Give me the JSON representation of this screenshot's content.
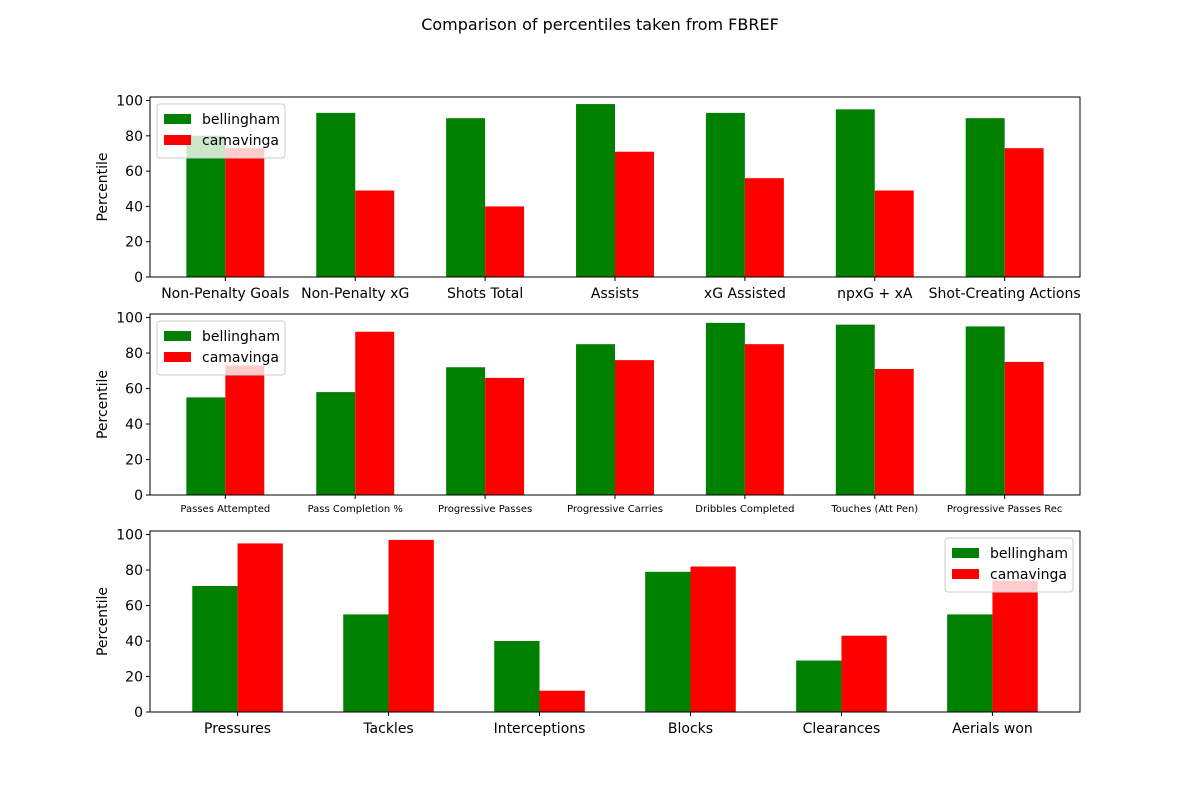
{
  "title": "Comparison of percentiles taken from FBREF",
  "chart_data": [
    {
      "type": "bar",
      "ylabel": "Percentile",
      "ylim": [
        0,
        102
      ],
      "yticks": [
        0,
        20,
        40,
        60,
        80,
        100
      ],
      "legend": "top-left",
      "categories": [
        "Non-Penalty Goals",
        "Non-Penalty xG",
        "Shots Total",
        "Assists",
        "xG Assisted",
        "npxG + xA",
        "Shot-Creating Actions"
      ],
      "series": [
        {
          "name": "bellingham",
          "color": "#008000",
          "values": [
            80,
            93,
            90,
            98,
            93,
            95,
            90
          ]
        },
        {
          "name": "camavinga",
          "color": "#ff0000",
          "values": [
            73,
            49,
            40,
            71,
            56,
            49,
            73
          ]
        }
      ]
    },
    {
      "type": "bar",
      "ylabel": "Percentile",
      "ylim": [
        0,
        102
      ],
      "yticks": [
        0,
        20,
        40,
        60,
        80,
        100
      ],
      "legend": "top-left",
      "tick_font": "small",
      "categories": [
        "Passes Attempted",
        "Pass Completion %",
        "Progressive Passes",
        "Progressive Carries",
        "Dribbles Completed",
        "Touches (Att Pen)",
        "Progressive Passes Rec"
      ],
      "series": [
        {
          "name": "bellingham",
          "color": "#008000",
          "values": [
            55,
            58,
            72,
            85,
            97,
            96,
            95
          ]
        },
        {
          "name": "camavinga",
          "color": "#ff0000",
          "values": [
            73,
            92,
            66,
            76,
            85,
            71,
            75
          ]
        }
      ]
    },
    {
      "type": "bar",
      "ylabel": "Percentile",
      "ylim": [
        0,
        102
      ],
      "yticks": [
        0,
        20,
        40,
        60,
        80,
        100
      ],
      "legend": "top-right",
      "categories": [
        "Pressures",
        "Tackles",
        "Interceptions",
        "Blocks",
        "Clearances",
        "Aerials won"
      ],
      "series": [
        {
          "name": "bellingham",
          "color": "#008000",
          "values": [
            71,
            55,
            40,
            79,
            29,
            55
          ]
        },
        {
          "name": "camavinga",
          "color": "#ff0000",
          "values": [
            95,
            97,
            12,
            82,
            43,
            74
          ]
        }
      ]
    }
  ]
}
